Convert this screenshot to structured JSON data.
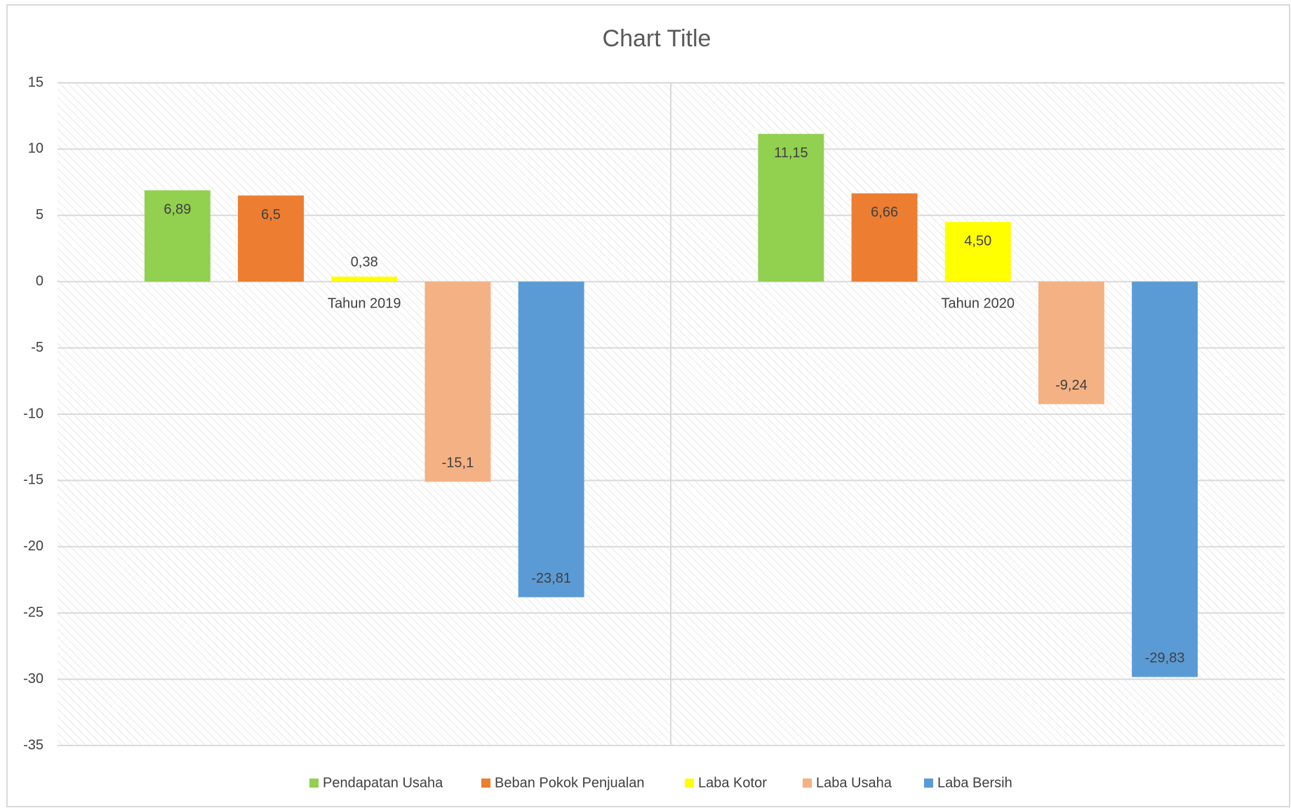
{
  "chart_data": {
    "type": "bar",
    "title": "Chart Title",
    "categories": [
      "Tahun 2019",
      "Tahun 2020"
    ],
    "series": [
      {
        "name": "Pendapatan Usaha",
        "color": "#92d050",
        "values": [
          6.89,
          11.15
        ],
        "value_labels": [
          "6,89",
          "11,15"
        ]
      },
      {
        "name": "Beban Pokok Penjualan",
        "color": "#ed7d31",
        "values": [
          6.5,
          6.66
        ],
        "value_labels": [
          "6,5",
          "6,66"
        ]
      },
      {
        "name": "Laba Kotor",
        "color": "#ffff00",
        "values": [
          0.38,
          4.5
        ],
        "value_labels": [
          "0,38",
          "4,50"
        ]
      },
      {
        "name": "Laba Usaha",
        "color": "#f4b183",
        "values": [
          -15.1,
          -9.24
        ],
        "value_labels": [
          "-15,1",
          "-9,24"
        ]
      },
      {
        "name": "Laba Bersih",
        "color": "#5b9bd5",
        "values": [
          -23.81,
          -29.83
        ],
        "value_labels": [
          "-23,81",
          "-29,83"
        ]
      }
    ],
    "ylim": [
      -35,
      15
    ],
    "yticks": [
      15,
      10,
      5,
      0,
      -5,
      -10,
      -15,
      -20,
      -25,
      -30,
      -35
    ],
    "grid": true
  }
}
